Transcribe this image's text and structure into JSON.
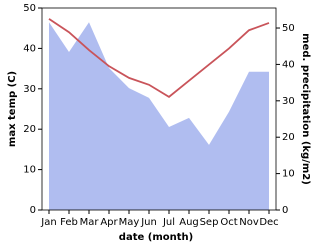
{
  "chart_data": {
    "type": "line-area",
    "x_label": "date (month)",
    "y_label": "max temp (C)",
    "y2_label": "med. precipitation (kg/m2)",
    "categories": [
      "Jan",
      "Feb",
      "Mar",
      "Apr",
      "May",
      "Jun",
      "Jul",
      "Aug",
      "Sep",
      "Oct",
      "Nov",
      "Dec"
    ],
    "series": [
      {
        "name": "max temp",
        "color": "#c9545a",
        "kind": "line",
        "axis": "y",
        "values": [
          47.3,
          44,
          39.6,
          35.6,
          32.7,
          31,
          28,
          32,
          36,
          40,
          44.5,
          46.3
        ]
      },
      {
        "name": "precipitation",
        "color": "#b0bdf0",
        "kind": "area",
        "axis": "y2",
        "values": [
          51.6,
          43.4,
          51.6,
          39,
          33.5,
          30.8,
          22.8,
          25.3,
          17.9,
          27,
          38,
          38
        ]
      }
    ],
    "ylim": [
      0,
      50
    ],
    "yticks": [
      0,
      10,
      20,
      30,
      40,
      50
    ],
    "y2lim": [
      0,
      55.5
    ],
    "y2ticks": [
      0,
      10,
      20,
      30,
      40,
      50
    ]
  }
}
